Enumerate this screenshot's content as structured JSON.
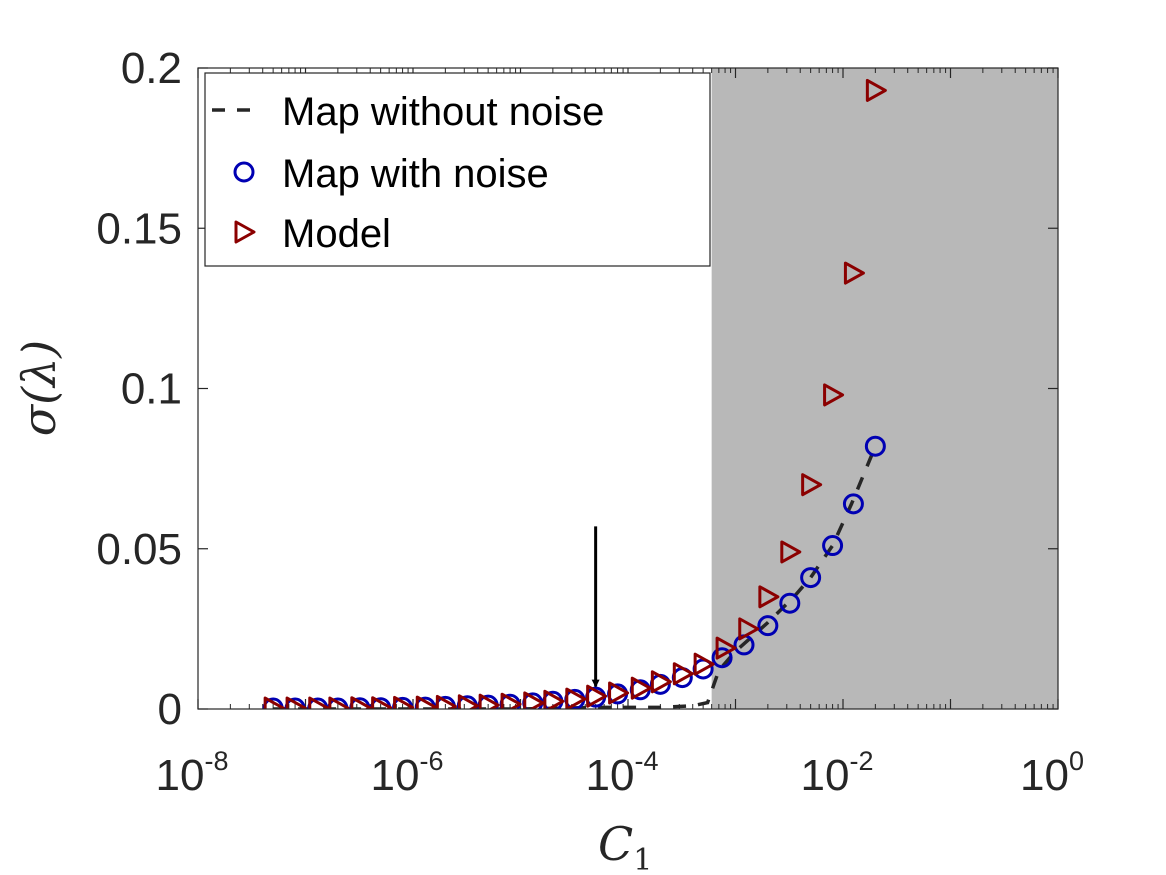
{
  "chart_data": {
    "type": "scatter",
    "xscale": "log",
    "xlim": [
      1e-08,
      1
    ],
    "ylim": [
      0,
      0.2
    ],
    "xlabel": "C",
    "xlabel_sub": "1",
    "ylabel": "σ(λ)",
    "xticks": [
      {
        "base": "10",
        "exp": "-8",
        "value": 1e-08
      },
      {
        "base": "10",
        "exp": "-6",
        "value": 1e-06
      },
      {
        "base": "10",
        "exp": "-4",
        "value": 0.0001
      },
      {
        "base": "10",
        "exp": "-2",
        "value": 0.01
      },
      {
        "base": "10",
        "exp": "0",
        "value": 1
      }
    ],
    "yticks": [
      {
        "label": "0",
        "value": 0
      },
      {
        "label": "0.05",
        "value": 0.05
      },
      {
        "label": "0.1",
        "value": 0.1
      },
      {
        "label": "0.15",
        "value": 0.15
      },
      {
        "label": "0.2",
        "value": 0.2
      }
    ],
    "shaded_region": {
      "x_from": 0.0006,
      "x_to": 1,
      "color": "#b8b8b8"
    },
    "annotation": {
      "type": "arrow",
      "x": 5e-05,
      "y_from": 0.057,
      "y_to": 0.007
    },
    "legend_position": "top-left",
    "series": [
      {
        "name": "Map without noise",
        "style": "dashed-line",
        "color": "#262626",
        "x": [
          5e-08,
          1e-06,
          1e-05,
          5e-05,
          0.0002,
          0.0004,
          0.00055,
          0.0007,
          0.001,
          0.002,
          0.0035,
          0.005,
          0.008,
          0.012,
          0.02
        ],
        "y": [
          0,
          0,
          0,
          0.0005,
          0.0005,
          0.001,
          0.002,
          0.012,
          0.018,
          0.027,
          0.035,
          0.041,
          0.051,
          0.064,
          0.082
        ]
      },
      {
        "name": "Map with noise",
        "style": "circle",
        "color": "#0000b3",
        "x": [
          5e-08,
          8e-08,
          1.3e-07,
          2e-07,
          3.2e-07,
          5e-07,
          8e-07,
          1.3e-06,
          2e-06,
          3.2e-06,
          5e-06,
          8e-06,
          1.3e-05,
          2e-05,
          3.2e-05,
          5e-05,
          8e-05,
          0.00013,
          0.0002,
          0.00032,
          0.0005,
          0.00075,
          0.0012,
          0.002,
          0.0032,
          0.005,
          0.008,
          0.0125,
          0.02
        ],
        "y": [
          0.0003,
          0.0003,
          0.0003,
          0.0003,
          0.0004,
          0.0004,
          0.0005,
          0.0006,
          0.0008,
          0.001,
          0.0012,
          0.0015,
          0.0019,
          0.0024,
          0.003,
          0.0037,
          0.0047,
          0.006,
          0.0077,
          0.0098,
          0.0125,
          0.016,
          0.02,
          0.026,
          0.033,
          0.041,
          0.051,
          0.064,
          0.082
        ]
      },
      {
        "name": "Model",
        "style": "triangle-right",
        "color": "#8b0000",
        "x": [
          5e-08,
          8e-08,
          1.3e-07,
          2e-07,
          3.2e-07,
          5e-07,
          8e-07,
          1.3e-06,
          2e-06,
          3.2e-06,
          5e-06,
          8e-06,
          1.3e-05,
          2e-05,
          3.2e-05,
          5e-05,
          8e-05,
          0.00013,
          0.0002,
          0.00032,
          0.0005,
          0.0008,
          0.0013,
          0.002,
          0.0032,
          0.005,
          0.008,
          0.0125,
          0.02
        ],
        "y": [
          0.0003,
          0.0003,
          0.0003,
          0.0003,
          0.0004,
          0.0004,
          0.0005,
          0.0006,
          0.0008,
          0.001,
          0.0012,
          0.0015,
          0.0019,
          0.0024,
          0.0031,
          0.004,
          0.005,
          0.0065,
          0.0085,
          0.011,
          0.014,
          0.019,
          0.025,
          0.035,
          0.049,
          0.07,
          0.098,
          0.136,
          0.193
        ]
      }
    ]
  }
}
